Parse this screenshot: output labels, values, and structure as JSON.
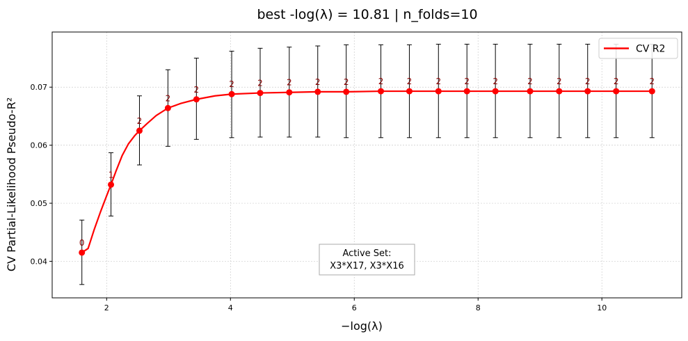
{
  "chart_data": {
    "type": "line",
    "title": "best -log(λ) = 10.81 | n_folds=10",
    "xlabel": "−log(λ)",
    "ylabel": "CV Partial-Likelihood Pseudo-R²",
    "xlim": [
      1.12,
      11.29
    ],
    "ylim": [
      0.0337,
      0.0795
    ],
    "xticks": [
      2,
      4,
      6,
      8,
      10
    ],
    "yticks": [
      0.04,
      0.05,
      0.06,
      0.07
    ],
    "ytick_labels": [
      "0.04",
      "0.05",
      "0.06",
      "0.07"
    ],
    "grid": true,
    "legend": {
      "position": "top-right",
      "label": "CV R2"
    },
    "colors": {
      "line": "#ff0000",
      "errorbar": "#000000",
      "count_label": "#8b0000",
      "grid": "#cccccc"
    },
    "points": {
      "x": [
        1.6,
        2.07,
        2.53,
        2.99,
        3.45,
        4.02,
        4.48,
        4.95,
        5.41,
        5.87,
        6.43,
        6.89,
        7.36,
        7.82,
        8.28,
        8.84,
        9.31,
        9.77,
        10.23,
        10.81
      ],
      "y": [
        0.0415,
        0.0532,
        0.0625,
        0.0664,
        0.0679,
        0.0688,
        0.069,
        0.0691,
        0.0692,
        0.0692,
        0.0693,
        0.0693,
        0.0693,
        0.0693,
        0.0693,
        0.0693,
        0.0693,
        0.0693,
        0.0693,
        0.0693
      ],
      "err_low": [
        0.036,
        0.0478,
        0.0566,
        0.0598,
        0.061,
        0.0613,
        0.0614,
        0.0614,
        0.0614,
        0.0613,
        0.0613,
        0.0613,
        0.0613,
        0.0613,
        0.0613,
        0.0613,
        0.0613,
        0.0613,
        0.0613,
        0.0613
      ],
      "err_high": [
        0.0471,
        0.0587,
        0.0685,
        0.073,
        0.075,
        0.0762,
        0.0767,
        0.0769,
        0.0771,
        0.0773,
        0.0773,
        0.0773,
        0.0774,
        0.0774,
        0.0774,
        0.0774,
        0.0774,
        0.0774,
        0.0774,
        0.0774
      ],
      "active_count": [
        "0",
        "1",
        "2",
        "2",
        "2",
        "2",
        "2",
        "2",
        "2",
        "2",
        "2",
        "2",
        "2",
        "2",
        "2",
        "2",
        "2",
        "2",
        "2",
        "2"
      ]
    },
    "curve": {
      "x": [
        1.6,
        1.7,
        1.8,
        1.9,
        2.0,
        2.07,
        2.15,
        2.25,
        2.35,
        2.45,
        2.53,
        2.65,
        2.8,
        2.99,
        3.2,
        3.45,
        3.75,
        4.02,
        4.48,
        4.95,
        5.41,
        5.87,
        6.43,
        7.0,
        8.0,
        9.0,
        10.0,
        10.81
      ],
      "y": [
        0.0415,
        0.0422,
        0.0455,
        0.0485,
        0.0513,
        0.0532,
        0.0555,
        0.0582,
        0.0602,
        0.0616,
        0.0625,
        0.0637,
        0.0651,
        0.0664,
        0.0672,
        0.0679,
        0.0685,
        0.0688,
        0.069,
        0.0691,
        0.0692,
        0.0692,
        0.0693,
        0.0693,
        0.0693,
        0.0693,
        0.0693,
        0.0693
      ]
    },
    "annotation": {
      "line1": "Active Set:",
      "line2": "X3*X17, X3*X16"
    }
  }
}
